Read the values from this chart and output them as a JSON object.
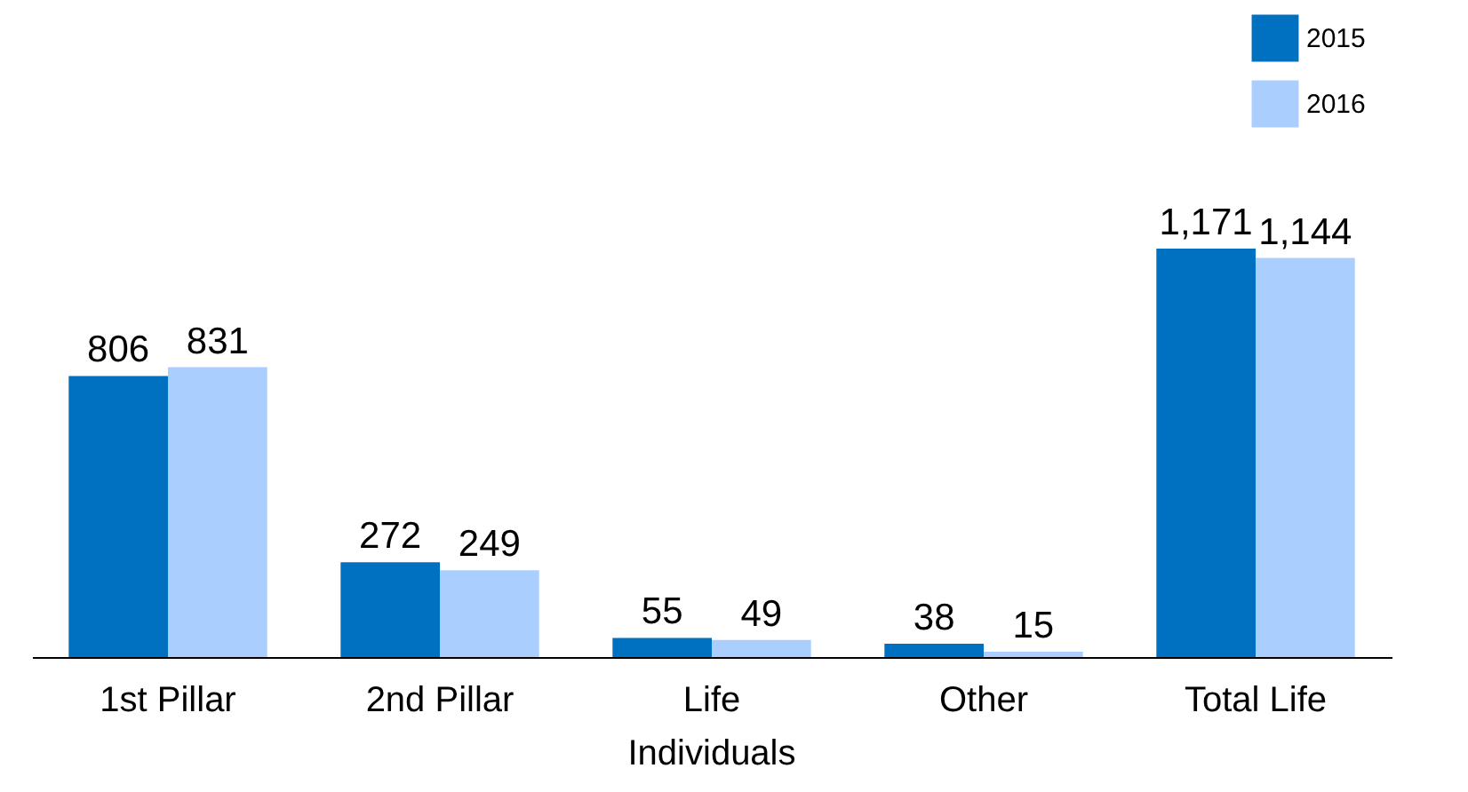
{
  "chart_data": {
    "type": "bar",
    "categories": [
      "1st Pillar",
      "2nd Pillar",
      "Life Individuals",
      "Other",
      "Total Life"
    ],
    "series": [
      {
        "name": "2015",
        "color": "#0070c0",
        "values": [
          806,
          272,
          55,
          38,
          1171
        ],
        "value_labels": [
          "806",
          "272",
          "55",
          "38",
          "1,171"
        ]
      },
      {
        "name": "2016",
        "color": "#aacfff",
        "values": [
          831,
          249,
          49,
          15,
          1144
        ],
        "value_labels": [
          "831",
          "249",
          "49",
          "15",
          "1,144"
        ]
      }
    ],
    "legend": "top right"
  }
}
